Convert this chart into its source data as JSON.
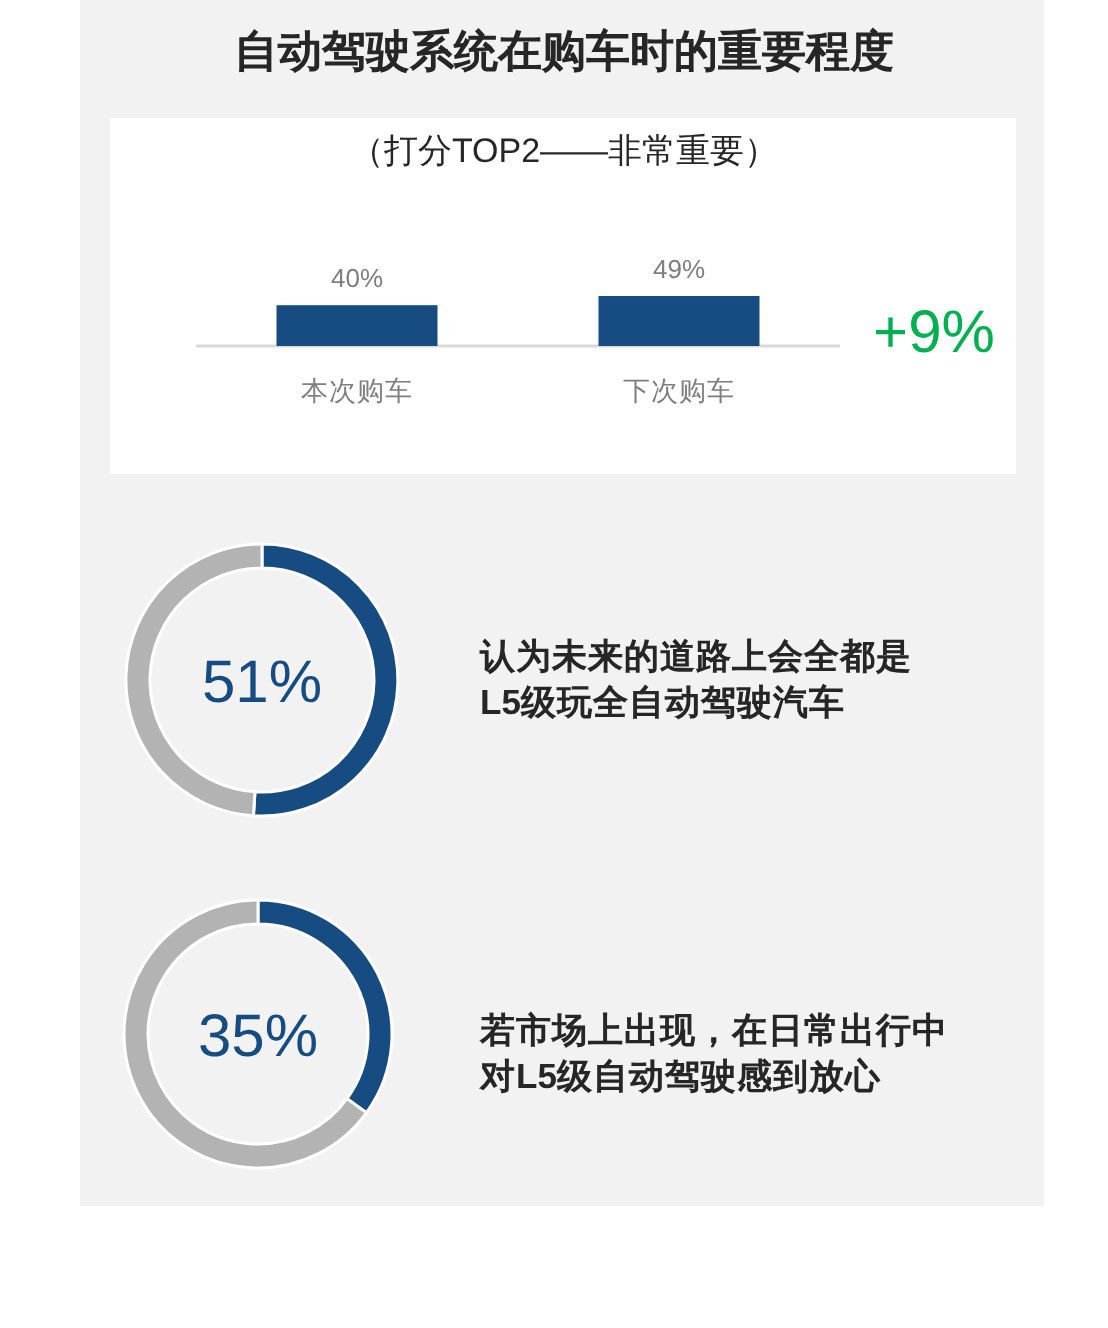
{
  "chart_data": [
    {
      "type": "bar",
      "title": "自动驾驶系统在购车时的重要程度",
      "subtitle": "（打分TOP2——非常重要）",
      "categories": [
        "本次购车",
        "下次购车"
      ],
      "values": [
        40,
        49
      ],
      "color": "#174c82",
      "value_labels": [
        "40%",
        "49%"
      ],
      "annotations": [
        "+9%"
      ]
    },
    {
      "type": "donut",
      "categories": [
        null,
        null
      ],
      "values": [
        51,
        49
      ],
      "colors": [
        "#174c82",
        "#b3b3b3"
      ],
      "annotations": [
        "51%",
        "认为未来的道路上会全都是L5级玩全自动驾驶汽车"
      ]
    },
    {
      "type": "donut",
      "categories": [
        null,
        null
      ],
      "values": [
        35,
        65
      ],
      "colors": [
        "#174c82",
        "#b3b3b3"
      ],
      "annotations": [
        "35%",
        "若市场上出现，在日常出行中对L5级自动驾驶感到放心"
      ]
    }
  ]
}
